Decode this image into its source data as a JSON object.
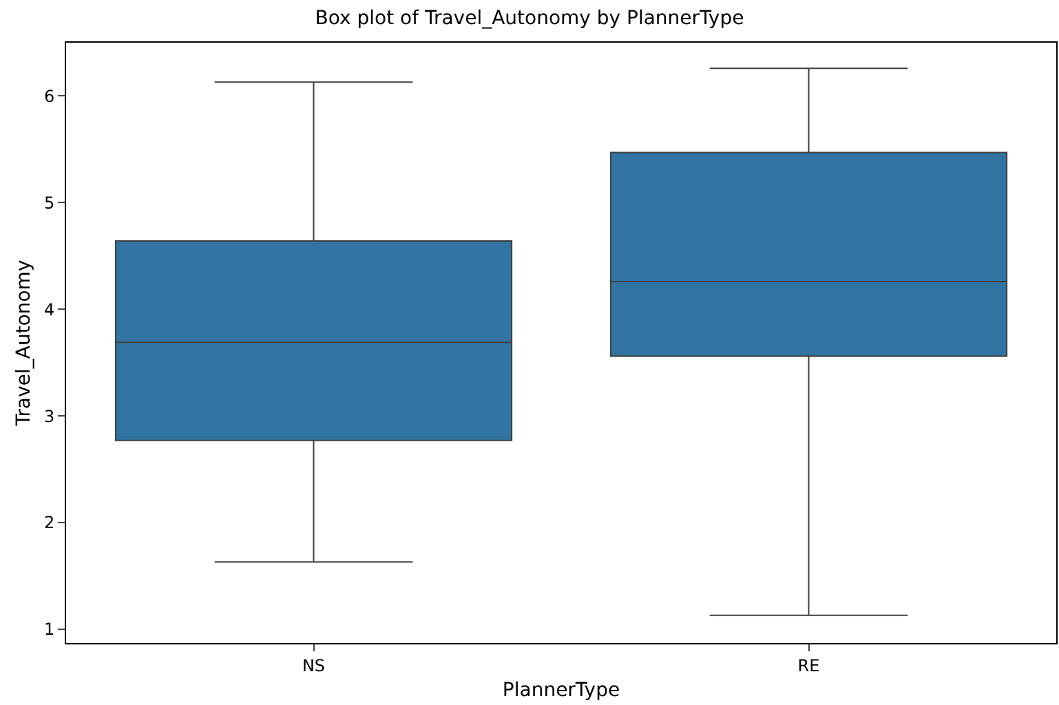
{
  "chart_data": {
    "type": "box",
    "title": "Box plot of Travel_Autonomy by PlannerType",
    "xlabel": "PlannerType",
    "ylabel": "Travel_Autonomy",
    "categories": [
      "NS",
      "RE"
    ],
    "boxes": [
      {
        "low": 1.63,
        "q1": 2.77,
        "median": 3.69,
        "q3": 4.64,
        "high": 6.13
      },
      {
        "low": 1.13,
        "q1": 3.56,
        "median": 4.26,
        "q3": 5.47,
        "high": 6.26
      }
    ],
    "color": "#3274a1",
    "ylim": [
      0.87,
      6.5
    ],
    "yticks": [
      1,
      2,
      3,
      4,
      5,
      6
    ]
  }
}
